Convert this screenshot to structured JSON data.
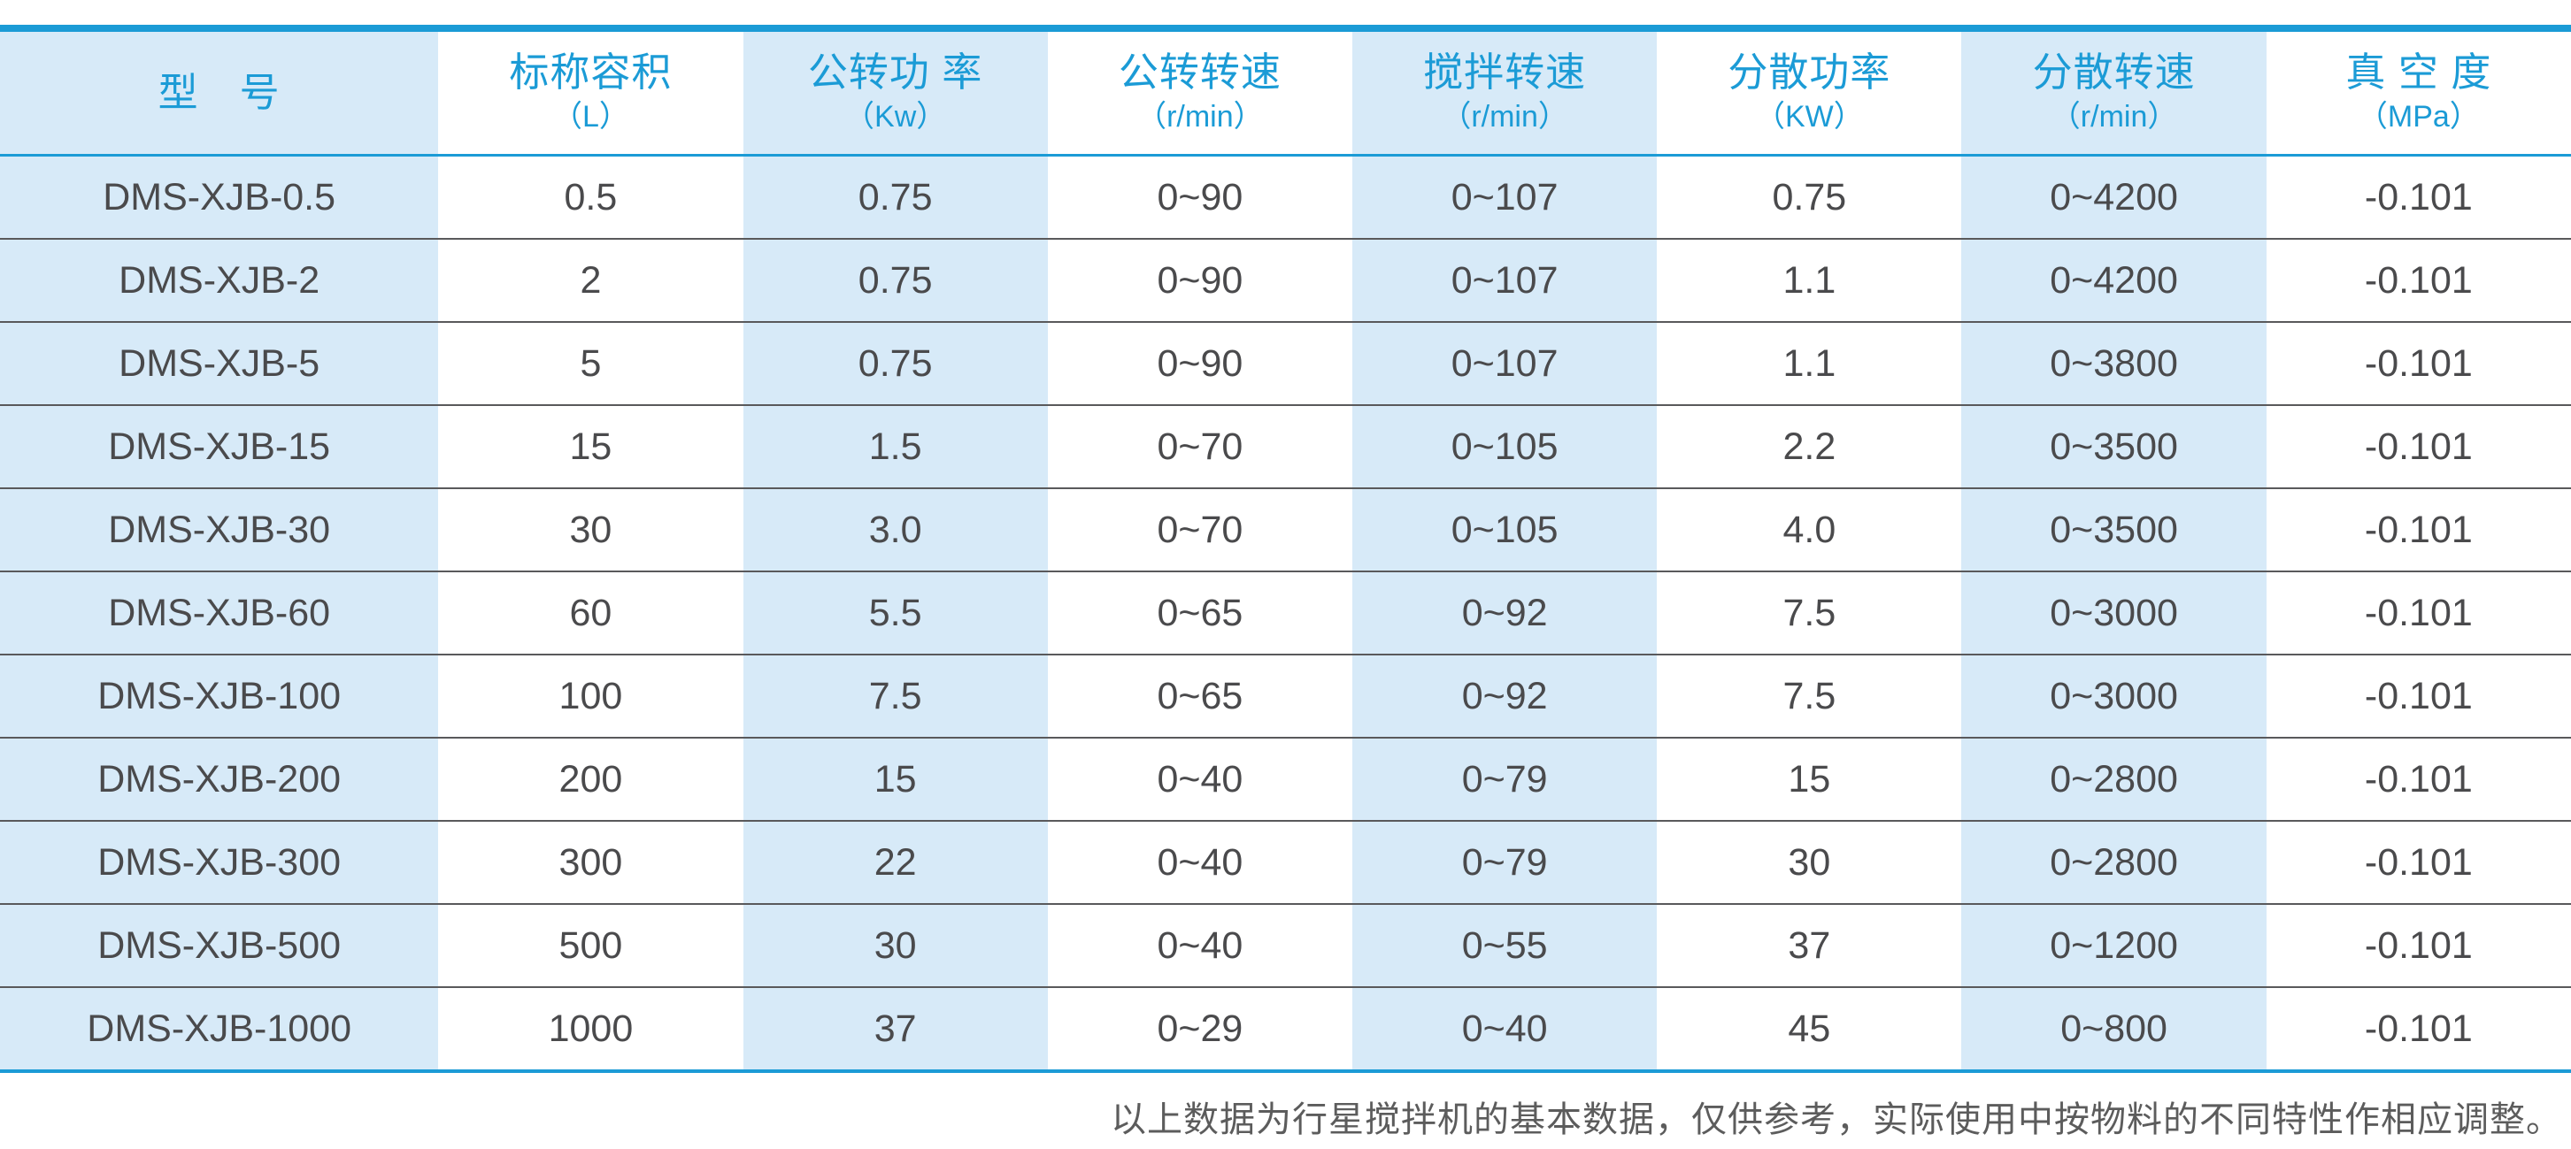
{
  "table": {
    "columns": [
      {
        "title": "型　号",
        "unit": ""
      },
      {
        "title": "标称容积",
        "unit": "（L）"
      },
      {
        "title": "公转功 率",
        "unit": "（Kw）"
      },
      {
        "title": "公转转速",
        "unit": "（r/min）"
      },
      {
        "title": "搅拌转速",
        "unit": "（r/min）"
      },
      {
        "title": "分散功率",
        "unit": "（KW）"
      },
      {
        "title": "分散转速",
        "unit": "（r/min）"
      },
      {
        "title": "真 空 度",
        "unit": "（MPa）"
      }
    ],
    "rows": [
      [
        "DMS-XJB-0.5",
        "0.5",
        "0.75",
        "0~90",
        "0~107",
        "0.75",
        "0~4200",
        "-0.101"
      ],
      [
        "DMS-XJB-2",
        "2",
        "0.75",
        "0~90",
        "0~107",
        "1.1",
        "0~4200",
        "-0.101"
      ],
      [
        "DMS-XJB-5",
        "5",
        "0.75",
        "0~90",
        "0~107",
        "1.1",
        "0~3800",
        "-0.101"
      ],
      [
        "DMS-XJB-15",
        "15",
        "1.5",
        "0~70",
        "0~105",
        "2.2",
        "0~3500",
        "-0.101"
      ],
      [
        "DMS-XJB-30",
        "30",
        "3.0",
        "0~70",
        "0~105",
        "4.0",
        "0~3500",
        "-0.101"
      ],
      [
        "DMS-XJB-60",
        "60",
        "5.5",
        "0~65",
        "0~92",
        "7.5",
        "0~3000",
        "-0.101"
      ],
      [
        "DMS-XJB-100",
        "100",
        "7.5",
        "0~65",
        "0~92",
        "7.5",
        "0~3000",
        "-0.101"
      ],
      [
        "DMS-XJB-200",
        "200",
        "15",
        "0~40",
        "0~79",
        "15",
        "0~2800",
        "-0.101"
      ],
      [
        "DMS-XJB-300",
        "300",
        "22",
        "0~40",
        "0~79",
        "30",
        "0~2800",
        "-0.101"
      ],
      [
        "DMS-XJB-500",
        "500",
        "30",
        "0~40",
        "0~55",
        "37",
        "0~1200",
        "-0.101"
      ],
      [
        "DMS-XJB-1000",
        "1000",
        "37",
        "0~29",
        "0~40",
        "45",
        "0~800",
        "-0.101"
      ]
    ]
  },
  "footnote": "以上数据为行星搅拌机的基本数据，仅供参考，实际使用中按物料的不同特性作相应调整。",
  "colors": {
    "accent_blue": "#1b9bd6",
    "stripe_blue": "#d7eaf8",
    "cell_text": "#4a4a4c",
    "row_separator": "#59595b",
    "footnote_gray": "#5c5c5c"
  }
}
